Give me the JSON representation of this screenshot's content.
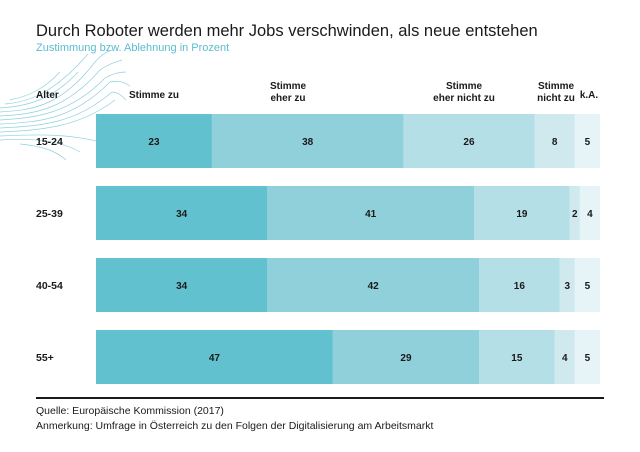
{
  "title": "Durch Roboter werden mehr Jobs verschwinden, als neue entstehen",
  "subtitle": "Zustimmung bzw. Ablehnung in Prozent",
  "headers": {
    "age": "Alter",
    "c1": "Stimme zu",
    "c2_line1": "Stimme",
    "c2_line2": "eher zu",
    "c3_line1": "Stimme",
    "c3_line2": "eher nicht zu",
    "c4_line1": "Stimme",
    "c4_line2": "nicht zu",
    "c5": "k.A."
  },
  "footer": {
    "source": "Quelle: Europäische Kommission (2017)",
    "note": "Anmerkung: Umfrage in Österreich zu den Folgen der Digitalisierung am Arbeitsmarkt"
  },
  "colors": {
    "stimme_zu": "#62c1cf",
    "eher_zu": "#8fd0da",
    "eher_nicht_zu": "#b4dfe6",
    "nicht_zu": "#cfe9ee",
    "ka": "#e6f4f7",
    "row_bg": "#eaf5f8"
  },
  "chart_data": {
    "type": "bar",
    "stacked": true,
    "orientation": "horizontal",
    "categories": [
      "15-24",
      "25-39",
      "40-54",
      "55+"
    ],
    "series": [
      {
        "name": "Stimme zu",
        "values": [
          23,
          34,
          34,
          47
        ]
      },
      {
        "name": "Stimme eher zu",
        "values": [
          38,
          41,
          42,
          29
        ]
      },
      {
        "name": "Stimme eher nicht zu",
        "values": [
          26,
          19,
          16,
          15
        ]
      },
      {
        "name": "Stimme nicht zu",
        "values": [
          8,
          2,
          3,
          4
        ]
      },
      {
        "name": "k.A.",
        "values": [
          5,
          4,
          5,
          5
        ]
      }
    ],
    "xlim": [
      0,
      100
    ],
    "grid": false
  }
}
